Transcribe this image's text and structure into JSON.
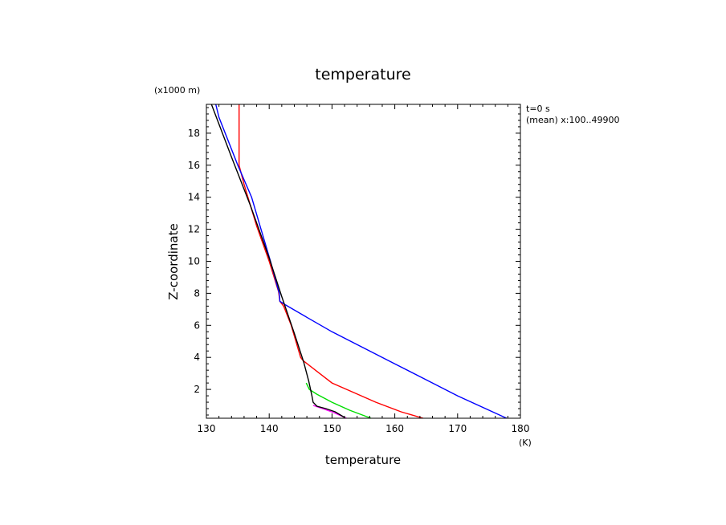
{
  "chart_data": {
    "type": "line",
    "title": "temperature",
    "xlabel": "temperature",
    "xunit": "(K)",
    "ylabel": "Z-coordinate",
    "yunit": "(x1000 m)",
    "xlim": [
      130,
      180
    ],
    "ylim": [
      0.2,
      19.8
    ],
    "xticks": [
      130,
      140,
      150,
      160,
      170,
      180
    ],
    "yticks": [
      2,
      4,
      6,
      8,
      10,
      12,
      14,
      16,
      18
    ],
    "annotations": [
      "t=0 s",
      "(mean) x:100..49900"
    ],
    "series": [
      {
        "name": "red-upper",
        "color": "#ff0000",
        "points": [
          [
            135.2,
            19.8
          ],
          [
            135.2,
            16.0
          ],
          [
            136.0,
            14.8
          ],
          [
            138.0,
            12.2
          ],
          [
            140.0,
            10.0
          ],
          [
            141.5,
            8.1
          ],
          [
            141.7,
            7.5
          ],
          [
            142.3,
            7.2
          ],
          [
            143.5,
            6.0
          ],
          [
            145.0,
            4.0
          ],
          [
            145.4,
            3.8
          ],
          [
            148.0,
            3.0
          ],
          [
            150.0,
            2.4
          ],
          [
            153.5,
            1.8
          ],
          [
            157.0,
            1.2
          ],
          [
            161.0,
            0.6
          ],
          [
            164.5,
            0.2
          ]
        ]
      },
      {
        "name": "blue",
        "color": "#0000ff",
        "points": [
          [
            131.5,
            19.8
          ],
          [
            132.0,
            19.0
          ],
          [
            135.0,
            16.0
          ],
          [
            137.2,
            14.0
          ],
          [
            138.7,
            12.0
          ],
          [
            140.2,
            10.0
          ],
          [
            141.6,
            8.0
          ],
          [
            141.7,
            7.5
          ],
          [
            142.5,
            7.3
          ],
          [
            146.0,
            6.5
          ],
          [
            150.0,
            5.6
          ],
          [
            155.0,
            4.6
          ],
          [
            160.0,
            3.6
          ],
          [
            165.0,
            2.6
          ],
          [
            170.0,
            1.6
          ],
          [
            175.0,
            0.7
          ],
          [
            177.8,
            0.2
          ]
        ]
      },
      {
        "name": "green",
        "color": "#00dd00",
        "points": [
          [
            145.9,
            2.4
          ],
          [
            146.4,
            2.0
          ],
          [
            147.6,
            1.7
          ],
          [
            150.0,
            1.2
          ],
          [
            152.8,
            0.7
          ],
          [
            156.2,
            0.2
          ]
        ]
      },
      {
        "name": "magenta",
        "color": "#ff00ff",
        "points": [
          [
            147.0,
            1.0
          ],
          [
            148.5,
            0.8
          ],
          [
            150.3,
            0.55
          ],
          [
            152.3,
            0.2
          ]
        ]
      },
      {
        "name": "black",
        "color": "#000000",
        "points": [
          [
            130.8,
            19.8
          ],
          [
            134.0,
            16.5
          ],
          [
            137.0,
            13.5
          ],
          [
            140.0,
            10.2
          ],
          [
            142.0,
            7.8
          ],
          [
            144.0,
            5.5
          ],
          [
            145.5,
            3.7
          ],
          [
            146.3,
            2.5
          ],
          [
            146.8,
            1.6
          ],
          [
            147.0,
            1.2
          ],
          [
            147.6,
            0.95
          ],
          [
            149.0,
            0.8
          ],
          [
            150.5,
            0.6
          ],
          [
            152.0,
            0.25
          ]
        ]
      }
    ]
  }
}
